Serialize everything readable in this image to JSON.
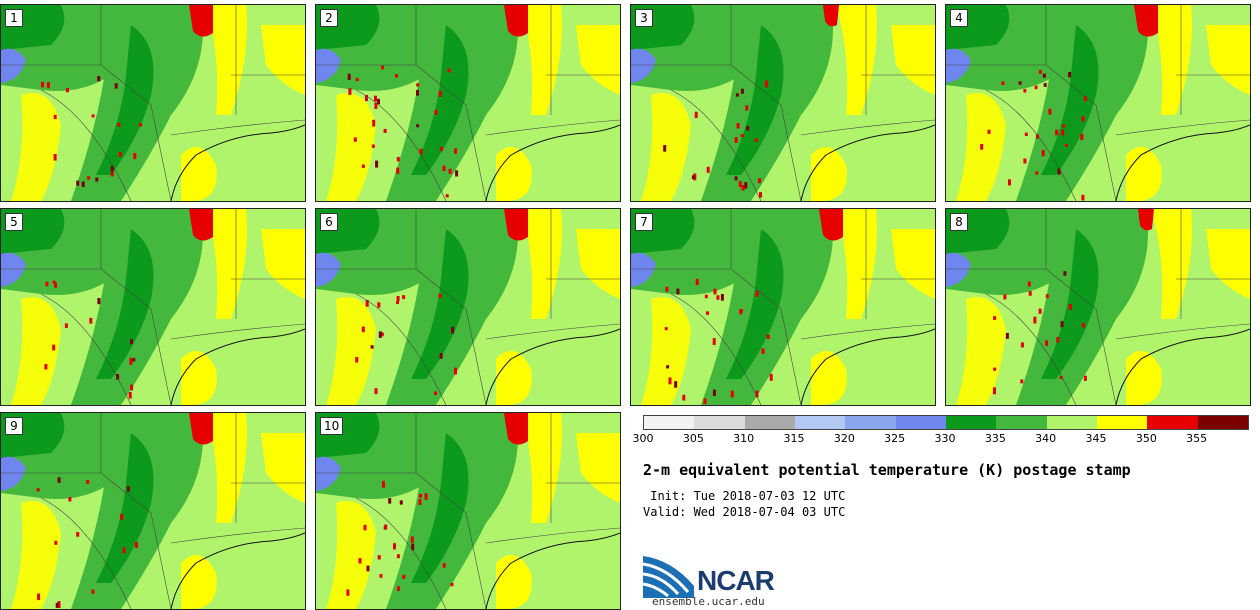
{
  "panels": [
    {
      "label": "1",
      "red_dots": 18,
      "north_red": "big"
    },
    {
      "label": "2",
      "red_dots": 30,
      "north_red": "big"
    },
    {
      "label": "3",
      "red_dots": 20,
      "north_red": "med"
    },
    {
      "label": "4",
      "red_dots": 26,
      "north_red": "big"
    },
    {
      "label": "5",
      "red_dots": 14,
      "north_red": "big"
    },
    {
      "label": "6",
      "red_dots": 16,
      "north_red": "big"
    },
    {
      "label": "7",
      "red_dots": 24,
      "north_red": "big"
    },
    {
      "label": "8",
      "red_dots": 20,
      "north_red": "med"
    },
    {
      "label": "9",
      "red_dots": 14,
      "north_red": "big"
    },
    {
      "label": "10",
      "red_dots": 22,
      "north_red": "big"
    }
  ],
  "colorbar": {
    "ticks": [
      "300",
      "305",
      "310",
      "315",
      "320",
      "325",
      "330",
      "335",
      "340",
      "345",
      "350",
      "355"
    ],
    "colors": [
      "#f2f2f2",
      "#dcdcdc",
      "#aaaaaa",
      "#b4c8f4",
      "#8aa6ee",
      "#6e86ee",
      "#0c9a1c",
      "#44b83c",
      "#b0f46c",
      "#ffff00",
      "#e60000",
      "#7d0000"
    ]
  },
  "title": "2-m equivalent potential temperature (K) postage stamp",
  "init": " Init: Tue 2018-07-03 12 UTC",
  "valid": "Valid: Wed 2018-07-04 03 UTC",
  "logo": {
    "text": "NCAR",
    "url": "ensemble.ucar.edu"
  }
}
